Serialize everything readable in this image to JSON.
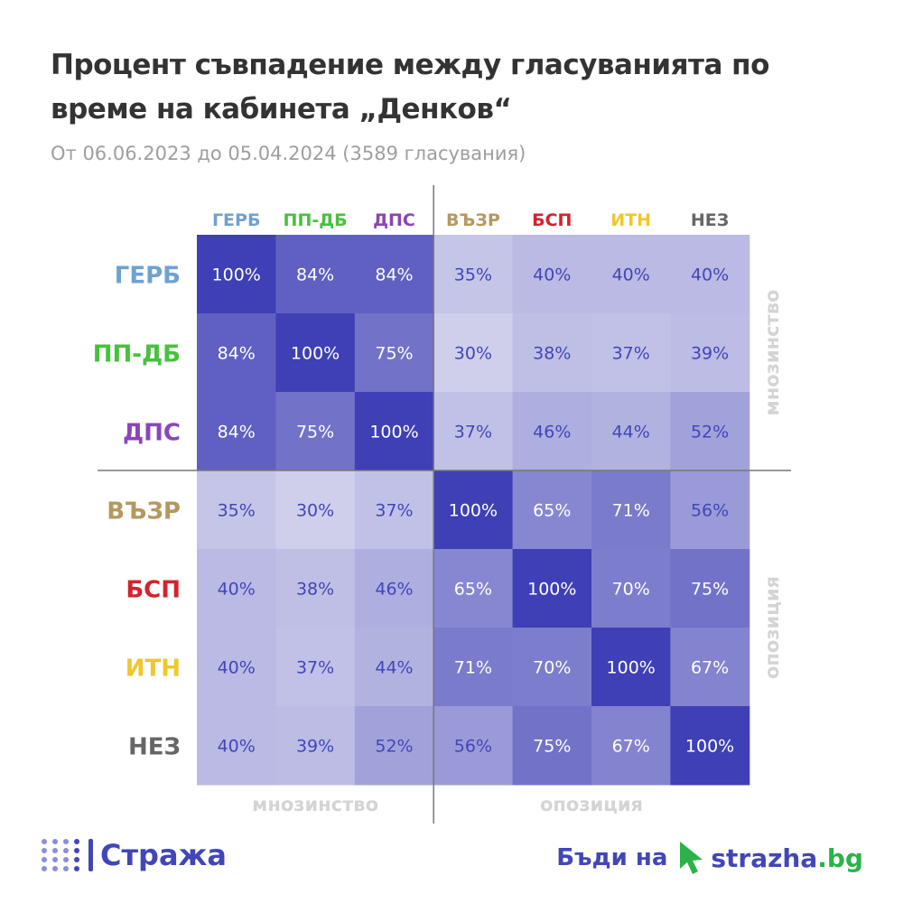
{
  "title": "Процент съвпадение между гласуванията по време на кабинета „Денков“",
  "subtitle": "От 06.06.2023 до 05.04.2024 (3589 гласувания)",
  "chart_data": {
    "type": "heatmap",
    "categories": [
      "ГЕРБ",
      "ПП-ДБ",
      "ДПС",
      "ВЪЗР",
      "БСП",
      "ИТН",
      "НЕЗ"
    ],
    "category_colors": [
      "#6fa1d1",
      "#46c23c",
      "#8a45b8",
      "#b5985f",
      "#d3232d",
      "#f0c72a",
      "#666666"
    ],
    "values": [
      [
        100,
        84,
        84,
        35,
        40,
        40,
        40
      ],
      [
        84,
        100,
        75,
        30,
        38,
        37,
        39
      ],
      [
        84,
        75,
        100,
        37,
        46,
        44,
        52
      ],
      [
        35,
        30,
        37,
        100,
        65,
        71,
        56
      ],
      [
        40,
        38,
        46,
        65,
        100,
        70,
        75
      ],
      [
        40,
        37,
        44,
        71,
        70,
        100,
        67
      ],
      [
        40,
        39,
        52,
        56,
        75,
        67,
        100
      ]
    ],
    "value_suffix": "%",
    "color_scale": [
      "#cfcfec",
      "#3f3fb6"
    ],
    "group_labels": {
      "majority": "мнозинство",
      "opposition": "опозиция"
    },
    "group_sizes": [
      3,
      4
    ]
  },
  "footer": {
    "logo_text": "Стража",
    "cta_text": "Бъди на",
    "site_name": "strazha",
    "site_tld": ".bg",
    "brand_color": "#4146b8",
    "cursor_color": "#2bb34a"
  }
}
